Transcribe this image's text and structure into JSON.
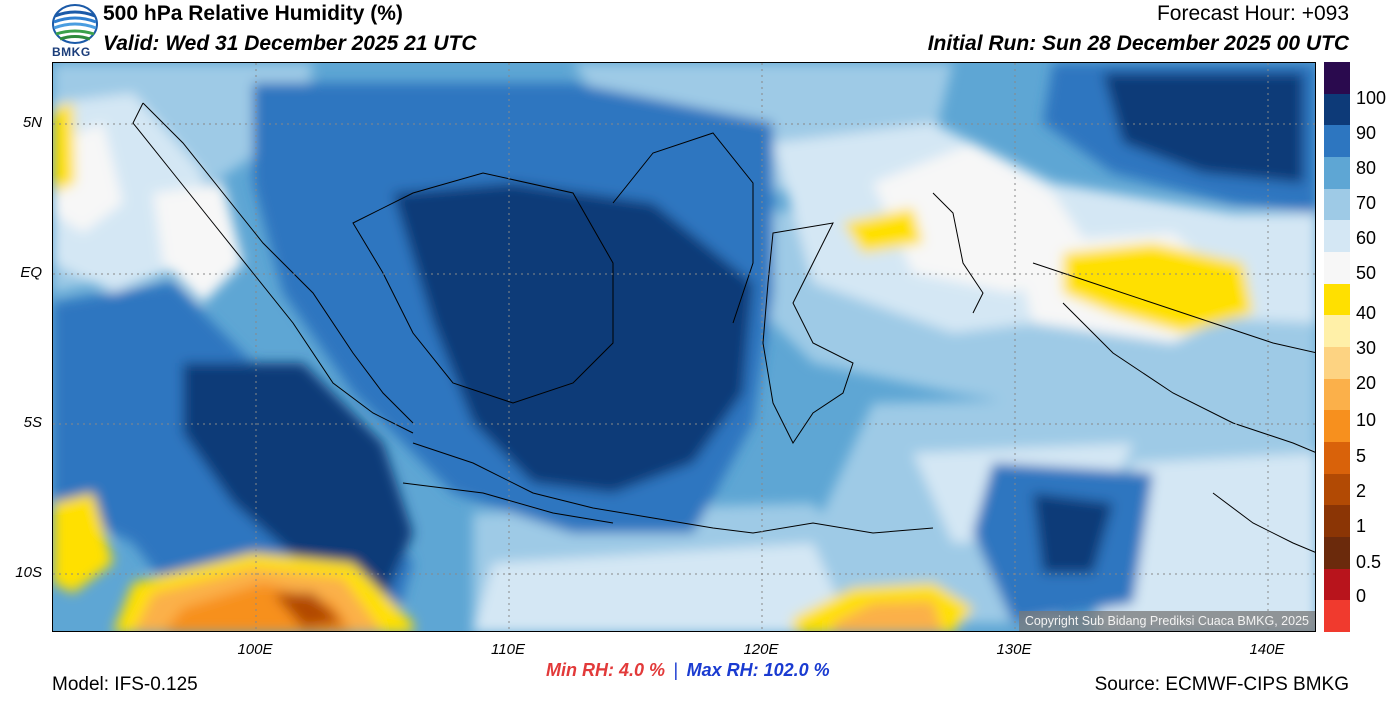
{
  "header": {
    "title": "500 hPa Relative Humidity (%)",
    "valid": "Valid: Wed 31 December 2025 21 UTC",
    "forecast_hour": "Forecast Hour: +093",
    "initial_run": "Initial Run: Sun 28 December 2025 00 UTC"
  },
  "logo": {
    "text": "BMKG"
  },
  "map": {
    "lat_labels": [
      "5N",
      "EQ",
      "5S",
      "10S"
    ],
    "lon_labels": [
      "100E",
      "110E",
      "120E",
      "130E",
      "140E"
    ],
    "copyright": "Copyright Sub Bidang Prediksi Cuaca BMKG, 2025"
  },
  "colorbar": {
    "labels": [
      "100",
      "90",
      "80",
      "70",
      "60",
      "50",
      "40",
      "30",
      "20",
      "10",
      "5",
      "2",
      "1",
      "0.5",
      "0"
    ],
    "colors": [
      "#f03a2e",
      "#b8141c",
      "#6b2a0c",
      "#8b3505",
      "#b24a04",
      "#d9620a",
      "#f7901e",
      "#fbb04a",
      "#fdd382",
      "#fff0a8",
      "#ffe000",
      "#f7f7f7",
      "#d4e7f4",
      "#9ecae6",
      "#5ea6d4",
      "#2d76c0",
      "#0d3a78",
      "#2a0a4e"
    ]
  },
  "footer": {
    "model": "Model: IFS-0.125",
    "min_rh": "Min RH:   4.0 %",
    "separator": "|",
    "max_rh": "Max RH: 102.0 %",
    "source": "Source: ECMWF-CIPS BMKG"
  }
}
